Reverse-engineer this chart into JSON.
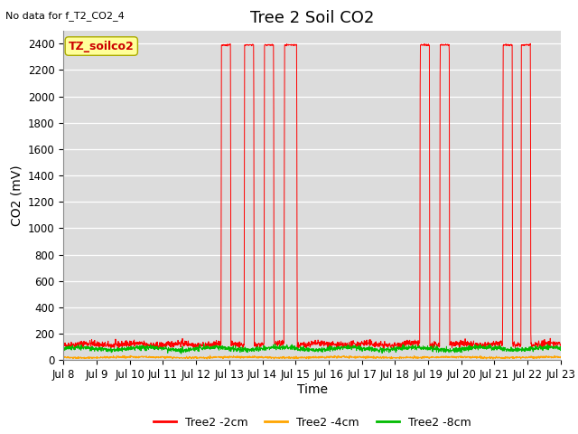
{
  "title": "Tree 2 Soil CO2",
  "top_left_text": "No data for f_T2_CO2_4",
  "ylabel": "CO2 (mV)",
  "xlabel": "Time",
  "ylim": [
    0,
    2500
  ],
  "yticks": [
    0,
    200,
    400,
    600,
    800,
    1000,
    1200,
    1400,
    1600,
    1800,
    2000,
    2200,
    2400
  ],
  "xlim_start": 8,
  "xlim_end": 23,
  "xtick_labels": [
    "Jul 8",
    "Jul 9",
    "Jul 10",
    "Jul 11",
    "Jul 12",
    "Jul 13",
    "Jul 14",
    "Jul 15",
    "Jul 16",
    "Jul 17",
    "Jul 18",
    "Jul 19",
    "Jul 20",
    "Jul 21",
    "Jul 22",
    "Jul 23"
  ],
  "xtick_positions": [
    8,
    9,
    10,
    11,
    12,
    13,
    14,
    15,
    16,
    17,
    18,
    19,
    20,
    21,
    22,
    23
  ],
  "series": {
    "red": {
      "label": "Tree2 -2cm",
      "color": "#FF0000",
      "base_value": 120,
      "spike_regions": [
        [
          12.75,
          13.05
        ],
        [
          13.45,
          13.75
        ],
        [
          14.05,
          14.35
        ],
        [
          14.65,
          15.05
        ],
        [
          18.75,
          19.05
        ],
        [
          19.35,
          19.65
        ],
        [
          21.25,
          21.55
        ],
        [
          21.8,
          22.1
        ]
      ],
      "spike_value": 2390
    },
    "orange": {
      "label": "Tree2 -4cm",
      "color": "#FFA500",
      "base_value": 22
    },
    "green": {
      "label": "Tree2 -8cm",
      "color": "#00BB00",
      "base_value": 88
    }
  },
  "legend_box_label": "TZ_soilco2",
  "legend_box_color": "#FFFF99",
  "legend_box_border": "#AAAA00",
  "bg_color": "#DCDCDC",
  "title_fontsize": 13,
  "axis_label_fontsize": 10,
  "tick_fontsize": 8.5
}
